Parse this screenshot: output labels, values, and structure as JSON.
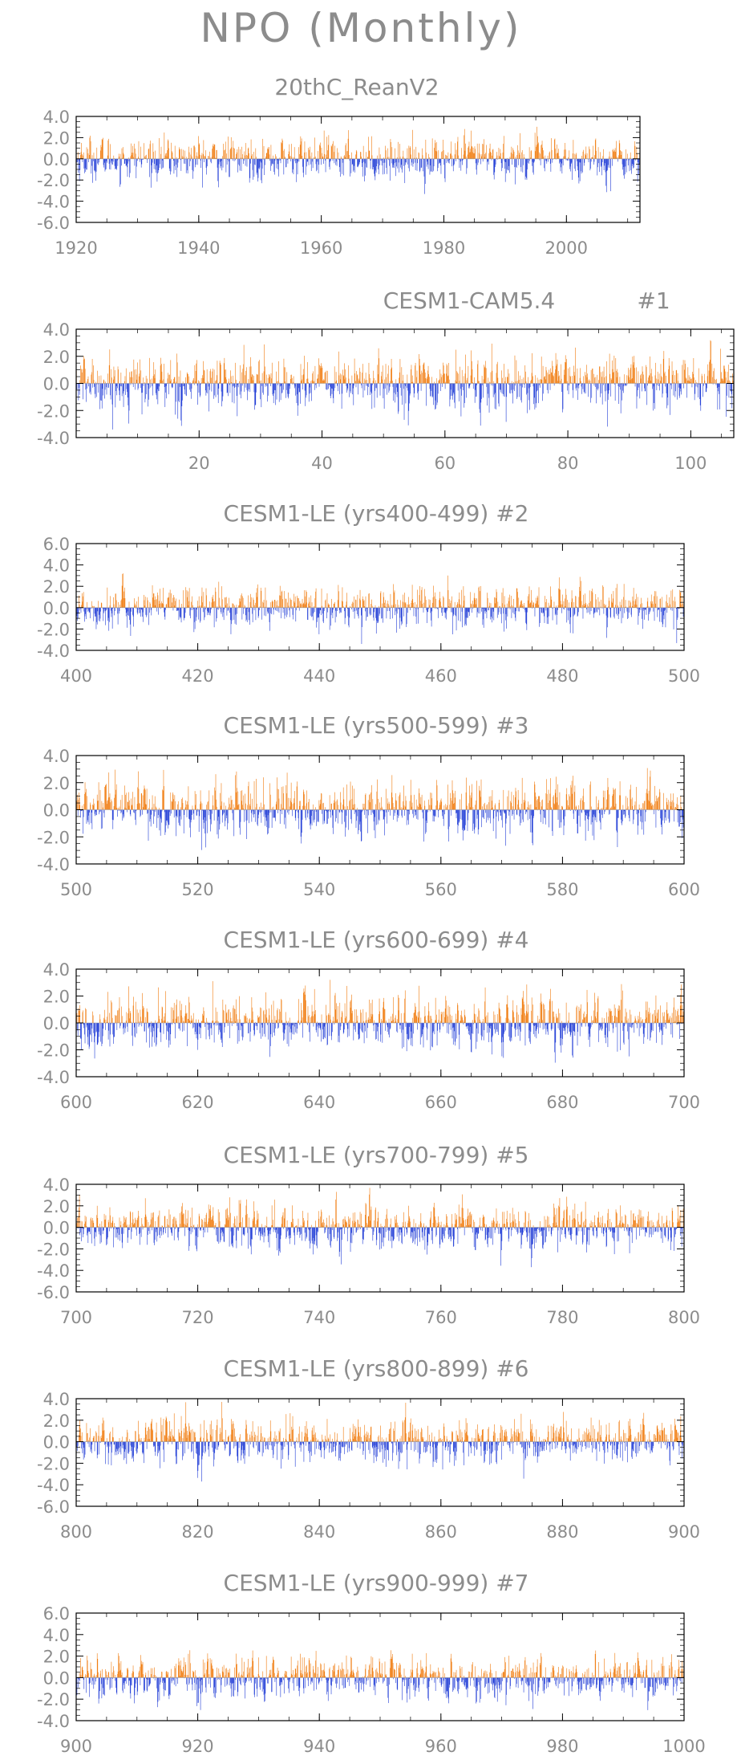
{
  "figure": {
    "title": "NPO (Monthly)"
  },
  "colors": {
    "positive": "#F07A0C",
    "negative": "#1F3BD6",
    "text": "#8c8c8c",
    "axis": "#000000"
  },
  "chart_data": [
    {
      "type": "bar",
      "title": "20thC_ReanV2",
      "xlim": [
        1920,
        2012
      ],
      "ylim": [
        -6.0,
        4.0
      ],
      "xticks": [
        1920,
        1940,
        1960,
        1980,
        2000
      ],
      "yticks": [
        "4.0",
        "2.0",
        "0.0",
        "-2.0",
        "-4.0",
        "-6.0"
      ],
      "series": [
        {
          "values_sign": "positive",
          "color": "#F07A0C"
        },
        {
          "values_sign": "negative",
          "color": "#1F3BD6"
        }
      ],
      "note_values": "monthly anomalies approx range -3.5 to 3.0"
    },
    {
      "type": "bar",
      "title": "CESM1-CAM5.4",
      "title_suffix": "#1",
      "xlim": [
        0,
        107
      ],
      "ylim": [
        -4.0,
        4.0
      ],
      "xticks": [
        20,
        40,
        60,
        80,
        100
      ],
      "yticks": [
        "4.0",
        "2.0",
        "0.0",
        "-2.0",
        "-4.0"
      ]
    },
    {
      "type": "bar",
      "title": "CESM1-LE (yrs400-499) #2",
      "xlim": [
        400,
        500
      ],
      "ylim": [
        -4.0,
        6.0
      ],
      "xticks": [
        400,
        420,
        440,
        460,
        480,
        500
      ],
      "yticks": [
        "6.0",
        "4.0",
        "2.0",
        "0.0",
        "-2.0",
        "-4.0"
      ]
    },
    {
      "type": "bar",
      "title": "CESM1-LE (yrs500-599) #3",
      "xlim": [
        500,
        600
      ],
      "ylim": [
        -4.0,
        4.0
      ],
      "xticks": [
        500,
        520,
        540,
        560,
        580,
        600
      ],
      "yticks": [
        "4.0",
        "2.0",
        "0.0",
        "-2.0",
        "-4.0"
      ]
    },
    {
      "type": "bar",
      "title": "CESM1-LE (yrs600-699) #4",
      "xlim": [
        600,
        700
      ],
      "ylim": [
        -4.0,
        4.0
      ],
      "xticks": [
        600,
        620,
        640,
        660,
        680,
        700
      ],
      "yticks": [
        "4.0",
        "2.0",
        "0.0",
        "-2.0",
        "-4.0"
      ]
    },
    {
      "type": "bar",
      "title": "CESM1-LE (yrs700-799) #5",
      "xlim": [
        700,
        800
      ],
      "ylim": [
        -6.0,
        4.0
      ],
      "xticks": [
        700,
        720,
        740,
        760,
        780,
        800
      ],
      "yticks": [
        "4.0",
        "2.0",
        "0.0",
        "-2.0",
        "-4.0",
        "-6.0"
      ]
    },
    {
      "type": "bar",
      "title": "CESM1-LE (yrs800-899) #6",
      "xlim": [
        800,
        900
      ],
      "ylim": [
        -6.0,
        4.0
      ],
      "xticks": [
        800,
        820,
        840,
        860,
        880,
        900
      ],
      "yticks": [
        "4.0",
        "2.0",
        "0.0",
        "-2.0",
        "-4.0",
        "-6.0"
      ]
    },
    {
      "type": "bar",
      "title": "CESM1-LE (yrs900-999) #7",
      "xlim": [
        900,
        1000
      ],
      "ylim": [
        -4.0,
        6.0
      ],
      "xticks": [
        900,
        920,
        940,
        960,
        980,
        1000
      ],
      "yticks": [
        "6.0",
        "4.0",
        "2.0",
        "0.0",
        "-2.0",
        "-4.0"
      ]
    }
  ]
}
